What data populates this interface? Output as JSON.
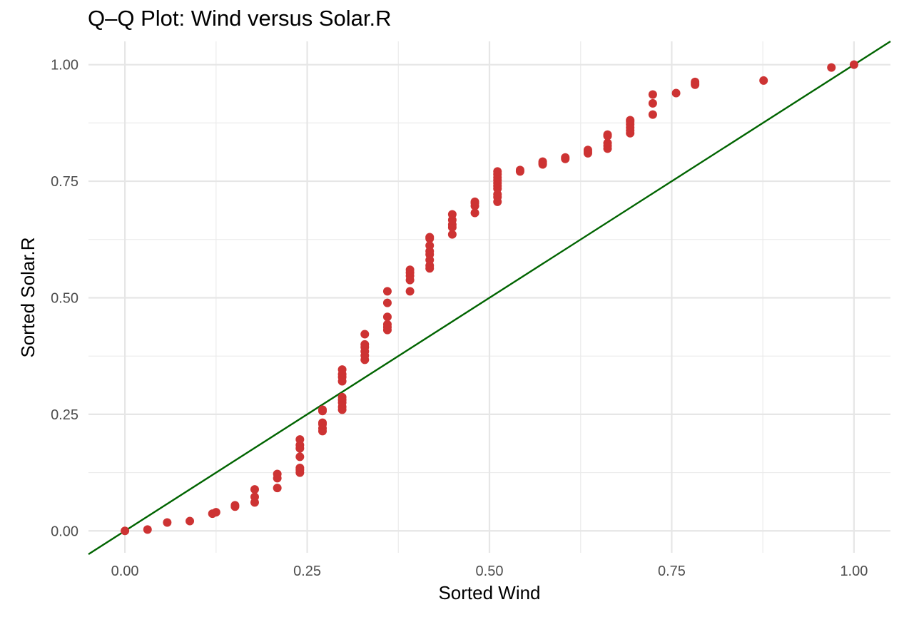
{
  "chart_data": {
    "type": "scatter",
    "title": "Q–Q Plot: Wind versus Solar.R",
    "xlabel": "Sorted Wind",
    "ylabel": "Sorted Solar.R",
    "xlim": [
      -0.05,
      1.05
    ],
    "ylim": [
      -0.047,
      1.05
    ],
    "x_ticks": [
      0,
      0.25,
      0.5,
      0.75,
      1
    ],
    "x_tick_labels": [
      "0.00",
      "0.25",
      "0.50",
      "0.75",
      "1.00"
    ],
    "y_ticks": [
      0,
      0.25,
      0.5,
      0.75,
      1
    ],
    "y_tick_labels": [
      "0.00",
      "0.25",
      "0.50",
      "0.75",
      "1.00"
    ],
    "grid": true,
    "legend": "none",
    "point_color": "#cd3333",
    "line_color": "#006400",
    "reference_line": {
      "slope": 1,
      "intercept": 0
    },
    "points": [
      [
        0.0,
        0.0
      ],
      [
        0.031,
        0.003
      ],
      [
        0.058,
        0.018
      ],
      [
        0.089,
        0.021
      ],
      [
        0.12,
        0.037
      ],
      [
        0.125,
        0.04
      ],
      [
        0.151,
        0.052
      ],
      [
        0.151,
        0.055
      ],
      [
        0.178,
        0.061
      ],
      [
        0.178,
        0.073
      ],
      [
        0.178,
        0.089
      ],
      [
        0.209,
        0.092
      ],
      [
        0.209,
        0.113
      ],
      [
        0.209,
        0.122
      ],
      [
        0.24,
        0.125
      ],
      [
        0.24,
        0.131
      ],
      [
        0.24,
        0.135
      ],
      [
        0.24,
        0.159
      ],
      [
        0.24,
        0.177
      ],
      [
        0.24,
        0.184
      ],
      [
        0.24,
        0.196
      ],
      [
        0.271,
        0.214
      ],
      [
        0.271,
        0.22
      ],
      [
        0.271,
        0.229
      ],
      [
        0.271,
        0.232
      ],
      [
        0.271,
        0.257
      ],
      [
        0.271,
        0.26
      ],
      [
        0.298,
        0.26
      ],
      [
        0.298,
        0.266
      ],
      [
        0.298,
        0.275
      ],
      [
        0.298,
        0.281
      ],
      [
        0.298,
        0.287
      ],
      [
        0.298,
        0.321
      ],
      [
        0.298,
        0.33
      ],
      [
        0.298,
        0.336
      ],
      [
        0.298,
        0.346
      ],
      [
        0.329,
        0.367
      ],
      [
        0.329,
        0.376
      ],
      [
        0.329,
        0.385
      ],
      [
        0.329,
        0.394
      ],
      [
        0.329,
        0.4
      ],
      [
        0.329,
        0.422
      ],
      [
        0.36,
        0.431
      ],
      [
        0.36,
        0.437
      ],
      [
        0.36,
        0.443
      ],
      [
        0.36,
        0.459
      ],
      [
        0.36,
        0.489
      ],
      [
        0.36,
        0.514
      ],
      [
        0.391,
        0.514
      ],
      [
        0.391,
        0.538
      ],
      [
        0.391,
        0.547
      ],
      [
        0.391,
        0.554
      ],
      [
        0.391,
        0.56
      ],
      [
        0.418,
        0.563
      ],
      [
        0.418,
        0.569
      ],
      [
        0.418,
        0.581
      ],
      [
        0.418,
        0.593
      ],
      [
        0.418,
        0.6
      ],
      [
        0.418,
        0.612
      ],
      [
        0.418,
        0.627
      ],
      [
        0.418,
        0.63
      ],
      [
        0.449,
        0.636
      ],
      [
        0.449,
        0.651
      ],
      [
        0.449,
        0.657
      ],
      [
        0.449,
        0.667
      ],
      [
        0.449,
        0.679
      ],
      [
        0.48,
        0.682
      ],
      [
        0.48,
        0.697
      ],
      [
        0.48,
        0.703
      ],
      [
        0.48,
        0.706
      ],
      [
        0.511,
        0.706
      ],
      [
        0.511,
        0.716
      ],
      [
        0.511,
        0.722
      ],
      [
        0.511,
        0.734
      ],
      [
        0.511,
        0.74
      ],
      [
        0.511,
        0.746
      ],
      [
        0.511,
        0.752
      ],
      [
        0.511,
        0.758
      ],
      [
        0.511,
        0.765
      ],
      [
        0.511,
        0.771
      ],
      [
        0.542,
        0.771
      ],
      [
        0.542,
        0.774
      ],
      [
        0.573,
        0.786
      ],
      [
        0.573,
        0.789
      ],
      [
        0.573,
        0.792
      ],
      [
        0.604,
        0.798
      ],
      [
        0.604,
        0.801
      ],
      [
        0.635,
        0.81
      ],
      [
        0.635,
        0.813
      ],
      [
        0.635,
        0.817
      ],
      [
        0.662,
        0.82
      ],
      [
        0.662,
        0.826
      ],
      [
        0.662,
        0.832
      ],
      [
        0.662,
        0.847
      ],
      [
        0.662,
        0.85
      ],
      [
        0.693,
        0.853
      ],
      [
        0.693,
        0.859
      ],
      [
        0.693,
        0.865
      ],
      [
        0.693,
        0.872
      ],
      [
        0.693,
        0.878
      ],
      [
        0.693,
        0.881
      ],
      [
        0.724,
        0.893
      ],
      [
        0.724,
        0.917
      ],
      [
        0.724,
        0.936
      ],
      [
        0.756,
        0.939
      ],
      [
        0.782,
        0.957
      ],
      [
        0.782,
        0.96
      ],
      [
        0.782,
        0.963
      ],
      [
        0.876,
        0.966
      ],
      [
        0.969,
        0.994
      ],
      [
        1.0,
        1.0
      ]
    ]
  }
}
